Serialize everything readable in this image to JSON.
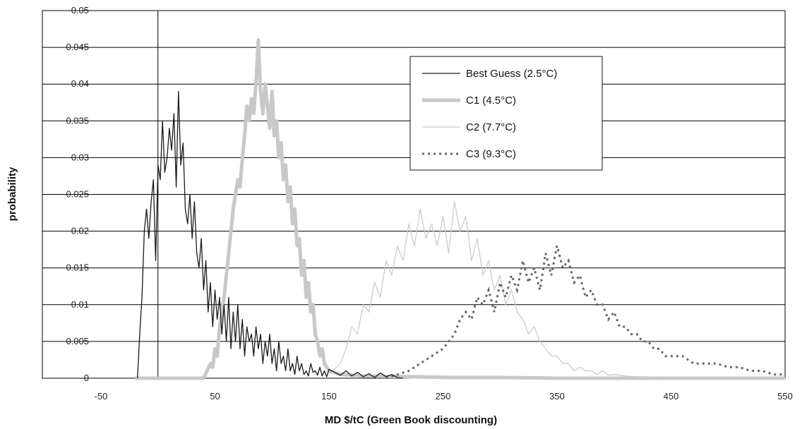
{
  "chart_data": {
    "type": "line",
    "title": "",
    "xlabel": "MD $/tC (Green Book discounting)",
    "ylabel": "probability",
    "xlim": [
      -50,
      550
    ],
    "ylim": [
      0,
      0.05
    ],
    "x_ticks": [
      "-50",
      "50",
      "150",
      "250",
      "350",
      "450",
      "550"
    ],
    "y_ticks": [
      "0",
      "0.005",
      "0.01",
      "0.015",
      "0.02",
      "0.025",
      "0.03",
      "0.035",
      "0.04",
      "0.045",
      "0.05"
    ],
    "grid": true,
    "legend_position": "top-right",
    "series": [
      {
        "name": "Best Guess (2.5°C)",
        "color": "#1a1a1a",
        "style": "solid-thin",
        "x": [
          -18,
          -16,
          -14,
          -12,
          -10,
          -8,
          -6,
          -4,
          -2,
          0,
          2,
          4,
          6,
          8,
          10,
          12,
          14,
          16,
          18,
          20,
          22,
          24,
          26,
          28,
          30,
          32,
          34,
          36,
          38,
          40,
          42,
          44,
          46,
          48,
          50,
          52,
          54,
          56,
          58,
          60,
          62,
          64,
          66,
          68,
          70,
          72,
          74,
          76,
          78,
          80,
          82,
          84,
          86,
          88,
          90,
          92,
          94,
          96,
          98,
          100,
          102,
          104,
          106,
          108,
          110,
          112,
          114,
          116,
          118,
          120,
          122,
          124,
          126,
          128,
          130,
          132,
          134,
          136,
          138,
          140,
          142,
          144,
          146,
          148,
          150,
          155,
          160,
          165,
          170,
          175,
          180,
          185,
          190,
          195,
          200,
          205,
          210,
          215
        ],
        "y": [
          0,
          0.006,
          0.011,
          0.02,
          0.023,
          0.019,
          0.024,
          0.027,
          0.016,
          0.029,
          0.027,
          0.035,
          0.028,
          0.03,
          0.034,
          0.031,
          0.036,
          0.026,
          0.039,
          0.029,
          0.032,
          0.023,
          0.021,
          0.025,
          0.019,
          0.024,
          0.017,
          0.015,
          0.019,
          0.012,
          0.016,
          0.009,
          0.013,
          0.007,
          0.012,
          0.008,
          0.011,
          0.006,
          0.01,
          0.005,
          0.011,
          0.004,
          0.009,
          0.005,
          0.01,
          0.004,
          0.008,
          0.003,
          0.007,
          0.005,
          0.006,
          0.003,
          0.007,
          0.004,
          0.006,
          0.002,
          0.005,
          0.003,
          0.006,
          0.002,
          0.004,
          0.001,
          0.005,
          0.002,
          0.003,
          0.001,
          0.004,
          0.001,
          0.002,
          0.0005,
          0.003,
          0.001,
          0.002,
          0.0005,
          0.001,
          0.0003,
          0.002,
          0.0008,
          0.001,
          0.0004,
          0.0015,
          0.0003,
          0.001,
          0.0002,
          0.0012,
          0.0008,
          0.0004,
          0.001,
          0.0003,
          0.0008,
          0.0002,
          0.0006,
          0.0001,
          0.0007,
          0.0002,
          0.0005,
          0.0001,
          0
        ]
      },
      {
        "name": "C1 (4.5°C)",
        "color": "#c8c8c8",
        "style": "solid-thick",
        "x": [
          -20,
          40,
          46,
          48,
          50,
          52,
          54,
          56,
          58,
          60,
          62,
          64,
          66,
          68,
          70,
          72,
          74,
          76,
          78,
          80,
          82,
          84,
          86,
          88,
          90,
          92,
          94,
          96,
          98,
          100,
          102,
          104,
          106,
          108,
          110,
          112,
          114,
          116,
          118,
          120,
          122,
          124,
          126,
          128,
          130,
          132,
          134,
          136,
          138,
          140,
          142,
          144,
          146,
          150,
          160,
          180,
          220,
          260,
          300,
          350,
          400,
          450,
          500,
          550
        ],
        "y": [
          0,
          0,
          0.002,
          0.0015,
          0.004,
          0.003,
          0.007,
          0.009,
          0.011,
          0.014,
          0.017,
          0.02,
          0.023,
          0.025,
          0.027,
          0.026,
          0.03,
          0.033,
          0.037,
          0.035,
          0.038,
          0.036,
          0.04,
          0.046,
          0.039,
          0.036,
          0.04,
          0.037,
          0.034,
          0.039,
          0.033,
          0.035,
          0.03,
          0.032,
          0.027,
          0.029,
          0.024,
          0.026,
          0.021,
          0.023,
          0.018,
          0.019,
          0.014,
          0.016,
          0.011,
          0.013,
          0.009,
          0.01,
          0.006,
          0.005,
          0.003,
          0.004,
          0.002,
          0.001,
          0.0005,
          0.0003,
          0.0002,
          0.0001,
          0.0001,
          0,
          0,
          0,
          0,
          0
        ]
      },
      {
        "name": "C2 (7.7°C)",
        "color": "#cccccc",
        "style": "solid-thin",
        "x": [
          150,
          160,
          165,
          170,
          175,
          180,
          185,
          190,
          195,
          200,
          205,
          210,
          215,
          220,
          225,
          230,
          235,
          240,
          245,
          250,
          255,
          260,
          265,
          270,
          275,
          280,
          285,
          290,
          295,
          300,
          305,
          310,
          315,
          320,
          325,
          330,
          335,
          340,
          345,
          350,
          355,
          360,
          365,
          370,
          375,
          380,
          385,
          390,
          395,
          400,
          410,
          420,
          430,
          440,
          450,
          500,
          550
        ],
        "y": [
          0.0005,
          0.002,
          0.004,
          0.007,
          0.006,
          0.01,
          0.009,
          0.013,
          0.011,
          0.016,
          0.014,
          0.018,
          0.016,
          0.021,
          0.018,
          0.023,
          0.019,
          0.021,
          0.018,
          0.022,
          0.017,
          0.024,
          0.02,
          0.022,
          0.016,
          0.019,
          0.014,
          0.016,
          0.012,
          0.014,
          0.01,
          0.012,
          0.009,
          0.008,
          0.006,
          0.007,
          0.005,
          0.004,
          0.003,
          0.003,
          0.002,
          0.002,
          0.001,
          0.0015,
          0.001,
          0.001,
          0.0005,
          0.001,
          0.0004,
          0.0005,
          0.0003,
          0.0002,
          0.0002,
          0.0001,
          0.0001,
          0,
          0
        ]
      },
      {
        "name": "C3 (9.3°C)",
        "color": "#666666",
        "style": "dashed",
        "x": [
          200,
          210,
          220,
          230,
          240,
          250,
          255,
          260,
          265,
          270,
          275,
          280,
          285,
          290,
          295,
          300,
          305,
          310,
          315,
          320,
          325,
          330,
          335,
          340,
          345,
          350,
          355,
          360,
          365,
          370,
          375,
          380,
          385,
          390,
          395,
          400,
          405,
          410,
          415,
          420,
          425,
          430,
          435,
          440,
          445,
          450,
          460,
          470,
          480,
          490,
          500,
          510,
          520,
          530,
          540,
          550
        ],
        "y": [
          0,
          0.0005,
          0.001,
          0.002,
          0.003,
          0.004,
          0.005,
          0.006,
          0.008,
          0.009,
          0.008,
          0.011,
          0.01,
          0.012,
          0.009,
          0.013,
          0.011,
          0.014,
          0.012,
          0.016,
          0.013,
          0.015,
          0.012,
          0.017,
          0.014,
          0.018,
          0.015,
          0.016,
          0.013,
          0.014,
          0.011,
          0.012,
          0.01,
          0.01,
          0.008,
          0.009,
          0.007,
          0.007,
          0.006,
          0.006,
          0.005,
          0.005,
          0.004,
          0.004,
          0.003,
          0.003,
          0.003,
          0.002,
          0.002,
          0.002,
          0.0015,
          0.0015,
          0.001,
          0.001,
          0.0005,
          0.0005
        ]
      }
    ]
  }
}
